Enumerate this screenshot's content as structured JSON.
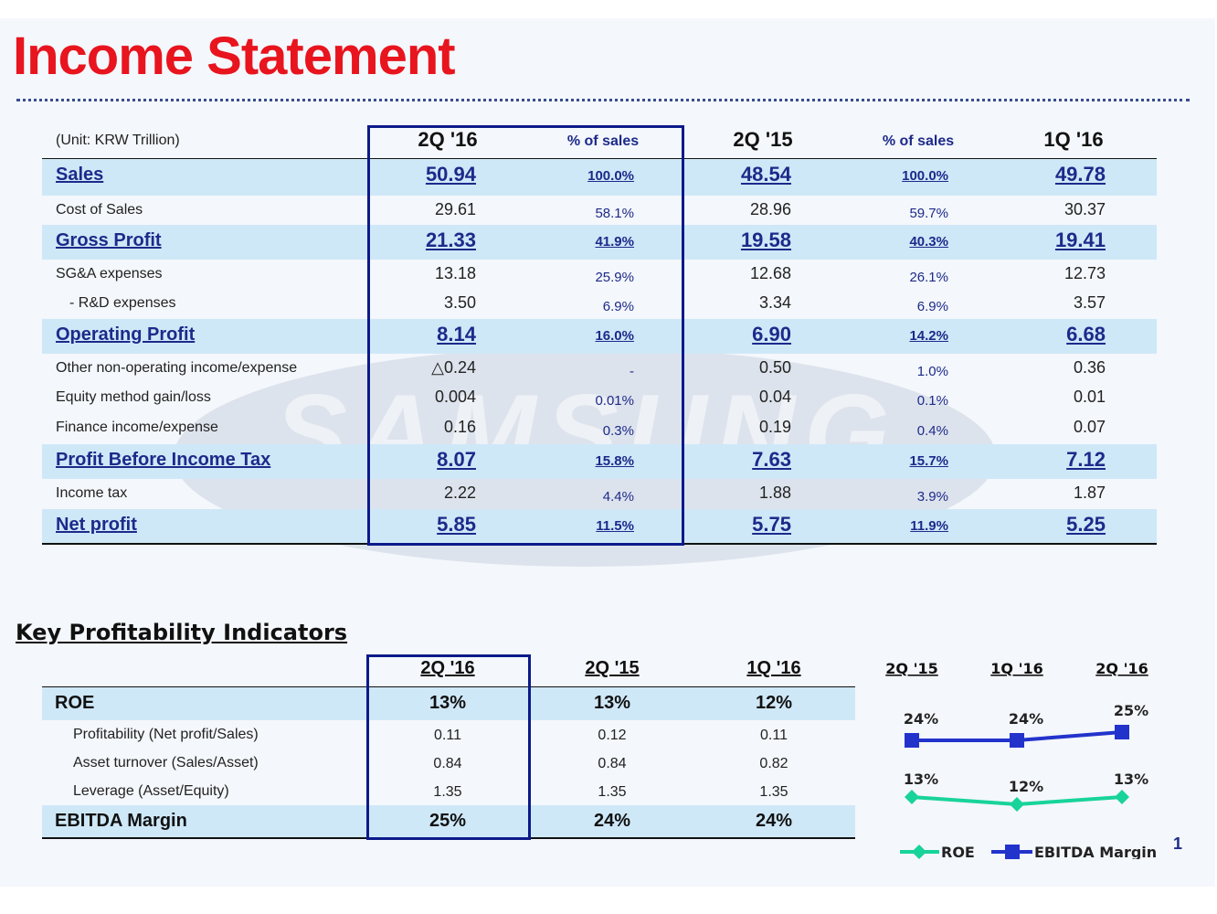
{
  "title": "Income Statement",
  "watermark": "SAMSUNG",
  "income": {
    "unit": "(Unit: KRW Trillion)",
    "headers": [
      "2Q '16",
      "% of sales",
      "2Q '15",
      "% of sales",
      "1Q '16"
    ],
    "rows": [
      {
        "label": "Sales",
        "v1": "50.94",
        "p1": "100.0%",
        "v2": "48.54",
        "p2": "100.0%",
        "v3": "49.78",
        "bold": true
      },
      {
        "label": "Cost of Sales",
        "v1": "29.61",
        "p1": "58.1%",
        "v2": "28.96",
        "p2": "59.7%",
        "v3": "30.37",
        "bold": false
      },
      {
        "label": "Gross Profit",
        "v1": "21.33",
        "p1": "41.9%",
        "v2": "19.58",
        "p2": "40.3%",
        "v3": "19.41",
        "bold": true
      },
      {
        "label": "SG&A expenses",
        "v1": "13.18",
        "p1": "25.9%",
        "v2": "12.68",
        "p2": "26.1%",
        "v3": "12.73",
        "bold": false
      },
      {
        "label": "- R&D expenses",
        "v1": "3.50",
        "p1": "6.9%",
        "v2": "3.34",
        "p2": "6.9%",
        "v3": "3.57",
        "bold": false
      },
      {
        "label": "Operating Profit",
        "v1": "8.14",
        "p1": "16.0%",
        "v2": "6.90",
        "p2": "14.2%",
        "v3": "6.68",
        "bold": true
      },
      {
        "label": "Other non-operating income/expense",
        "v1": "△0.24",
        "p1": "-",
        "v2": "0.50",
        "p2": "1.0%",
        "v3": "0.36",
        "bold": false
      },
      {
        "label": "Equity method gain/loss",
        "v1": "0.004",
        "p1": "0.01%",
        "v2": "0.04",
        "p2": "0.1%",
        "v3": "0.01",
        "bold": false
      },
      {
        "label": "Finance income/expense",
        "v1": "0.16",
        "p1": "0.3%",
        "v2": "0.19",
        "p2": "0.4%",
        "v3": "0.07",
        "bold": false
      },
      {
        "label": "Profit Before Income Tax",
        "v1": "8.07",
        "p1": "15.8%",
        "v2": "7.63",
        "p2": "15.7%",
        "v3": "7.12",
        "bold": true
      },
      {
        "label": "Income tax",
        "v1": "2.22",
        "p1": "4.4%",
        "v2": "1.88",
        "p2": "3.9%",
        "v3": "1.87",
        "bold": false
      },
      {
        "label": "Net profit",
        "v1": "5.85",
        "p1": "11.5%",
        "v2": "5.75",
        "p2": "11.9%",
        "v3": "5.25",
        "bold": true
      }
    ]
  },
  "kpi": {
    "title": "Key Profitability Indicators",
    "headers": [
      "2Q '16",
      "2Q '15",
      "1Q '16"
    ],
    "rows": [
      {
        "label": "ROE",
        "v1": "13%",
        "v2": "13%",
        "v3": "12%",
        "bold": true
      },
      {
        "label": "Profitability (Net profit/Sales)",
        "v1": "0.11",
        "v2": "0.12",
        "v3": "0.11",
        "bold": false
      },
      {
        "label": "Asset turnover (Sales/Asset)",
        "v1": "0.84",
        "v2": "0.84",
        "v3": "0.82",
        "bold": false
      },
      {
        "label": "Leverage (Asset/Equity)",
        "v1": "1.35",
        "v2": "1.35",
        "v3": "1.35",
        "bold": false
      },
      {
        "label": "EBITDA Margin",
        "v1": "25%",
        "v2": "24%",
        "v3": "24%",
        "bold": true
      }
    ]
  },
  "chart_data": {
    "type": "line",
    "categories": [
      "2Q '15",
      "1Q '16",
      "2Q '16"
    ],
    "series": [
      {
        "name": "EBITDA Margin",
        "values": [
          24,
          24,
          25
        ],
        "labels": [
          "24%",
          "24%",
          "25%"
        ],
        "color": "#2233cc"
      },
      {
        "name": "ROE",
        "values": [
          13,
          12,
          13
        ],
        "labels": [
          "13%",
          "12%",
          "13%"
        ],
        "color": "#18d39a"
      }
    ],
    "legend": "bottom"
  },
  "page_number": "1"
}
